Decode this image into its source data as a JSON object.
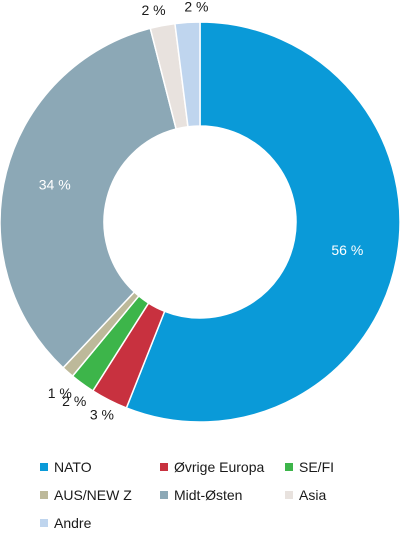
{
  "chart_data": {
    "type": "pie",
    "donut": true,
    "title": "",
    "slices": [
      {
        "name": "NATO",
        "value": 56,
        "label": "56 %",
        "color": "#0a9ad8"
      },
      {
        "name": "Øvrige Europa",
        "value": 3,
        "label": "3 %",
        "color": "#c8313f"
      },
      {
        "name": "SE/FI",
        "value": 2,
        "label": "2 %",
        "color": "#3db54a"
      },
      {
        "name": "AUS/NEW Z",
        "value": 1,
        "label": "1 %",
        "color": "#bdb99a"
      },
      {
        "name": "Midt-Østen",
        "value": 34,
        "label": "34 %",
        "color": "#8ca8b6"
      },
      {
        "name": "Asia",
        "value": 2,
        "label": "2 %",
        "color": "#e8e2de"
      },
      {
        "name": "Andre",
        "value": 2,
        "label": "2 %",
        "color": "#bfd5ee"
      }
    ],
    "legend_position": "bottom"
  }
}
